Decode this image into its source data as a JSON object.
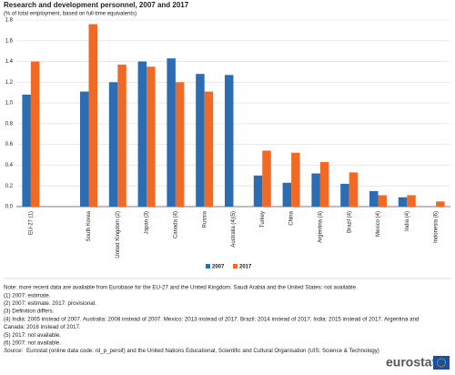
{
  "chart_data": {
    "type": "bar",
    "title": "Research and development personnel, 2007 and 2017",
    "subtitle": "(% of total employment, based on full-time equivalents)",
    "categories": [
      "EU-27 (1)",
      null,
      "South Korea",
      "United Kingdom (2)",
      "Japan (3)",
      "Canada (4)",
      "Russia",
      "Australia (4)(5)",
      "Turkey",
      "China",
      "Argentina (4)",
      "Brazil (4)",
      "Mexico (4)",
      "India (4)",
      "Indonesia (6)"
    ],
    "series": [
      {
        "name": "2007",
        "color": "#2b6cb3",
        "values": [
          1.08,
          null,
          1.11,
          1.2,
          1.4,
          1.43,
          1.28,
          1.27,
          0.3,
          0.23,
          0.32,
          0.22,
          0.15,
          0.09,
          null
        ]
      },
      {
        "name": "2017",
        "color": "#f06a25",
        "values": [
          1.4,
          null,
          1.76,
          1.37,
          1.35,
          1.2,
          1.11,
          null,
          0.54,
          0.52,
          0.43,
          0.33,
          0.11,
          0.11,
          0.05
        ]
      }
    ],
    "ylim": [
      0,
      1.8
    ],
    "yticks": [
      {
        "value": 0,
        "label": "0.0"
      },
      0.2,
      0.4,
      0.6,
      0.8,
      {
        "value": 1,
        "label": "1.0"
      },
      1.2,
      1.4,
      1.6,
      1.8
    ],
    "grid": true,
    "legend": "bottom",
    "notes": [
      "Note: more recent data are available from Eurobase for the EU-27 and the United Kingdom. Saudi Arabia and the United States: not available.",
      "(1) 2007: estimate.",
      "(2) 2007: estimate. 2017: provisional.",
      "(3) Definition differs.",
      "(4) India: 2005 instead of 2007. Australia: 2008 instead of 2007. Mexico: 2013 instead of 2017. Brazil: 2014 instead of 2017. India: 2015 instead of 2017. Argentina and",
      "Canada: 2016 instead of 2017.",
      "(5) 2017: not available.",
      "(6) 2007: not available."
    ],
    "source_label": "Source:",
    "source": "Eurostat (online data code: rd_p_persif) and the United Nations Educational, Scientific and Cultural Organisation (UIS: Science & Technology)",
    "logo": "eurostat"
  }
}
